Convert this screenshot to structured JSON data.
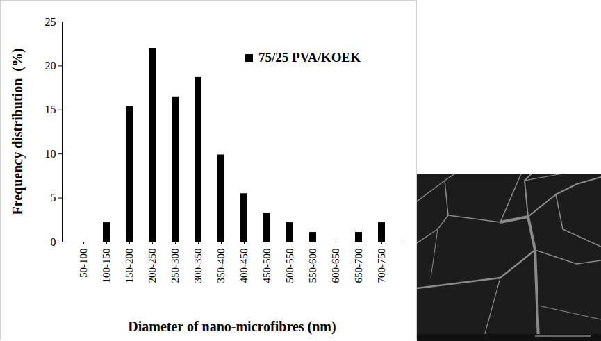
{
  "chart_data": {
    "type": "bar",
    "xlabel": "Diameter of nano-microfibres (nm)",
    "ylabel": "Frequency distribution  (%)",
    "categories": [
      "50-100",
      "100-150",
      "150-200",
      "200-250",
      "250-300",
      "300-350",
      "350-400",
      "400-450",
      "450-500",
      "500-550",
      "550-600",
      "600-650",
      "650-700",
      "700-750"
    ],
    "series": [
      {
        "name": "75/25 PVA/KOEK",
        "color": "#000000",
        "values": [
          0,
          2.2,
          15.4,
          22,
          16.5,
          18.7,
          9.9,
          5.5,
          3.3,
          2.2,
          1.1,
          0,
          1.1,
          2.2
        ]
      }
    ],
    "ylim": [
      0,
      25
    ],
    "yticks": [
      0,
      5,
      10,
      15,
      20,
      25
    ],
    "legend": "top-right"
  }
}
